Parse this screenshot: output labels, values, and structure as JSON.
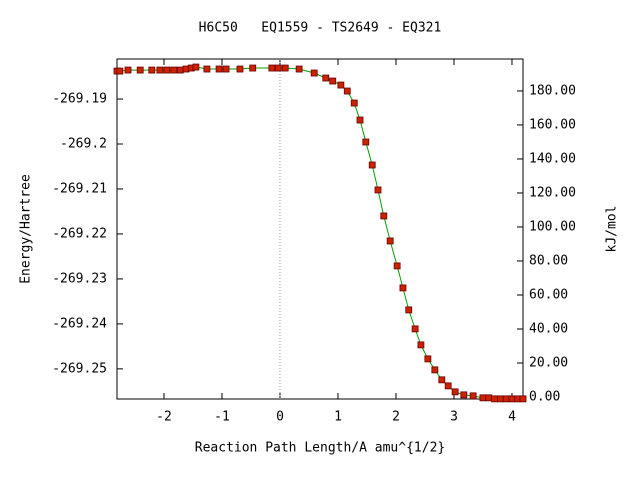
{
  "chart_data": {
    "type": "line",
    "title": "H6C50   EQ1559 - TS2649 - EQ321",
    "xlabel": "Reaction Path Length/A amu^{1/2}",
    "ylabel": "Energy/Hartree",
    "y2label": "kJ/mol",
    "xlim": [
      -2.81,
      4.19
    ],
    "xticks": [
      -2,
      -1,
      0,
      1,
      2,
      3,
      4
    ],
    "ylim": [
      -269.2567,
      -269.1811
    ],
    "yticks": [
      -269.19,
      -269.2,
      -269.21,
      -269.22,
      -269.23,
      -269.24,
      -269.25
    ],
    "y2lim": [
      -1.18,
      198.8
    ],
    "y2ticks": [
      {
        "value": 0,
        "label": "0.00"
      },
      {
        "value": 20,
        "label": "20.00"
      },
      {
        "value": 40,
        "label": "40.00"
      },
      {
        "value": 60,
        "label": "60.00"
      },
      {
        "value": 80,
        "label": "80.00"
      },
      {
        "value": 100,
        "label": "100.00"
      },
      {
        "value": 120,
        "label": "120.00"
      },
      {
        "value": 140,
        "label": "140.00"
      },
      {
        "value": 160,
        "label": "160.00"
      },
      {
        "value": 180,
        "label": "180.00"
      }
    ],
    "vline_x": 0,
    "series": [
      {
        "color": "#00a000",
        "marker_color": "#cc2200",
        "x": [
          -2.81,
          -2.76,
          -2.62,
          -2.41,
          -2.21,
          -2.07,
          -1.95,
          -1.83,
          -1.72,
          -1.62,
          -1.53,
          -1.45,
          -1.26,
          -1.05,
          -0.93,
          -0.69,
          -0.47,
          -0.14,
          -0.03,
          0.09,
          0.33,
          0.59,
          0.79,
          0.91,
          1.05,
          1.16,
          1.28,
          1.38,
          1.48,
          1.59,
          1.69,
          1.79,
          1.9,
          2.02,
          2.12,
          2.22,
          2.33,
          2.43,
          2.55,
          2.67,
          2.79,
          2.9,
          3.02,
          3.17,
          3.33,
          3.5,
          3.6,
          3.7,
          3.8,
          3.9,
          4.0,
          4.1,
          4.19
        ],
        "values": [
          -269.18378,
          -269.18378,
          -269.18356,
          -269.18356,
          -269.18356,
          -269.18356,
          -269.18356,
          -269.18356,
          -269.18356,
          -269.18333,
          -269.18311,
          -269.18289,
          -269.18333,
          -269.18333,
          -269.18333,
          -269.18333,
          -269.18311,
          -269.18311,
          -269.18311,
          -269.18311,
          -269.18333,
          -269.18422,
          -269.18533,
          -269.186,
          -269.18689,
          -269.18822,
          -269.19089,
          -269.19467,
          -269.19956,
          -269.20467,
          -269.21022,
          -269.216,
          -269.22156,
          -269.22711,
          -269.232,
          -269.23689,
          -269.24111,
          -269.24467,
          -269.24778,
          -269.25022,
          -269.25244,
          -269.25378,
          -269.25511,
          -269.25578,
          -269.256,
          -269.25644,
          -269.25644,
          -269.25667,
          -269.25667,
          -269.25667,
          -269.25667,
          -269.25667,
          -269.25667
        ]
      }
    ]
  }
}
